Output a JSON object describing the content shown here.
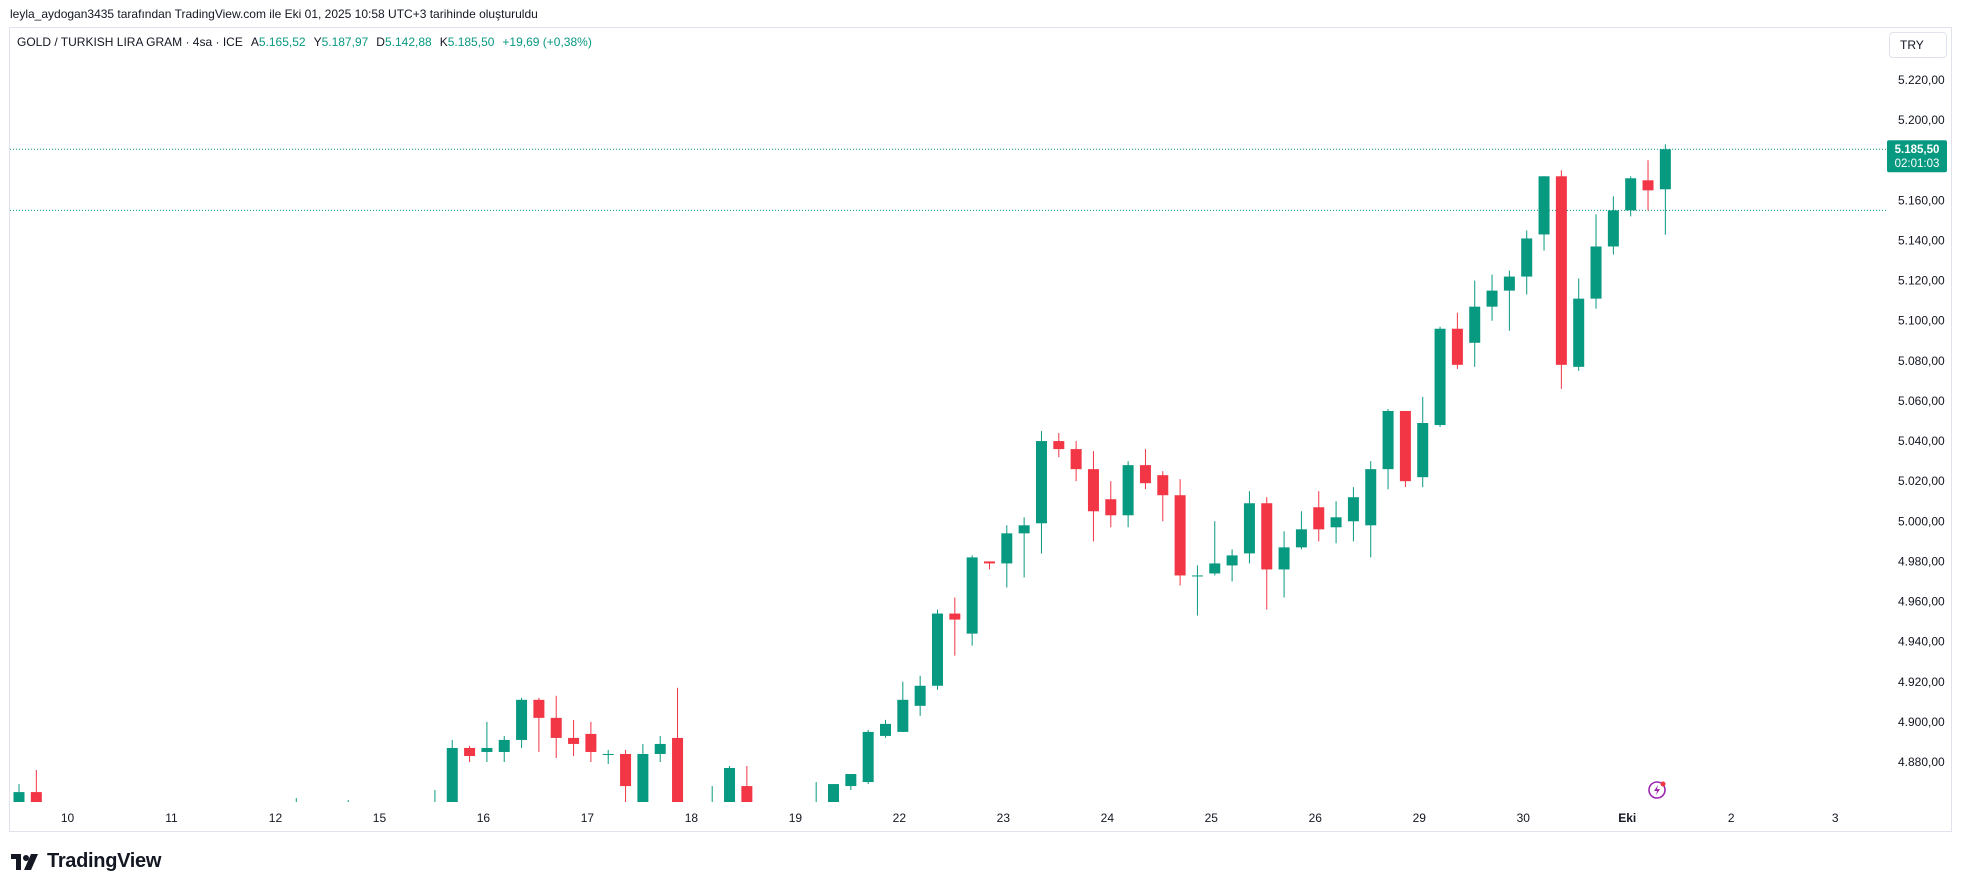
{
  "caption": "leyla_aydogan3435 tarafından TradingView.com ile Eki 01, 2025 10:58 UTC+3 tarihinde oluşturuldu",
  "legend": {
    "symbol": "GOLD / TURKISH LIRA GRAM · 4sa · ICE",
    "open_label": "A",
    "open": "5.165,52",
    "high_label": "Y",
    "high": "5.187,97",
    "low_label": "D",
    "low": "5.142,88",
    "close_label": "K",
    "close": "5.185,50",
    "change": "+19,69 (+0,38%)"
  },
  "currency_button": "TRY",
  "brand": "TradingView",
  "colors": {
    "up": "#089981",
    "down": "#f23645",
    "axis_text": "#131722",
    "badge": "#089981"
  },
  "chart_data": {
    "type": "candlestick",
    "interval": "4sa",
    "y_ticks": [
      4880,
      4900,
      4920,
      4940,
      4960,
      4980,
      5000,
      5020,
      5040,
      5060,
      5080,
      5100,
      5120,
      5140,
      5160,
      5180,
      5200,
      5220
    ],
    "y_tick_labels": [
      "4.880,00",
      "4.900,00",
      "4.920,00",
      "4.940,00",
      "4.960,00",
      "4.980,00",
      "5.000,00",
      "5.020,00",
      "5.040,00",
      "5.060,00",
      "5.080,00",
      "5.100,00",
      "5.120,00",
      "5.140,00",
      "5.160,00",
      "5.180,00",
      "5.200,00",
      "5.220,00"
    ],
    "x_labels": [
      {
        "label": "10",
        "bar": 2.8
      },
      {
        "label": "11",
        "bar": 8.8
      },
      {
        "label": "12",
        "bar": 14.8
      },
      {
        "label": "15",
        "bar": 20.8
      },
      {
        "label": "16",
        "bar": 26.8
      },
      {
        "label": "17",
        "bar": 32.8
      },
      {
        "label": "18",
        "bar": 38.8
      },
      {
        "label": "19",
        "bar": 44.8
      },
      {
        "label": "22",
        "bar": 50.8
      },
      {
        "label": "23",
        "bar": 56.8
      },
      {
        "label": "24",
        "bar": 62.8
      },
      {
        "label": "25",
        "bar": 68.8
      },
      {
        "label": "26",
        "bar": 74.8
      },
      {
        "label": "29",
        "bar": 80.8
      },
      {
        "label": "30",
        "bar": 86.8
      },
      {
        "label": "Eki",
        "bar": 92.8,
        "bold": true
      },
      {
        "label": "2",
        "bar": 98.8
      },
      {
        "label": "3",
        "bar": 104.8
      }
    ],
    "last_price": 5185.5,
    "last_price_label": "5.185,50",
    "countdown_label": "02:01:03",
    "reference_line": 5155,
    "candles": [
      {
        "i": 0,
        "o": 4860,
        "h": 4869,
        "l": 4860,
        "c": 4865
      },
      {
        "i": 1,
        "o": 4865,
        "h": 4876,
        "l": 4860,
        "c": 4860
      },
      {
        "i": 16,
        "o": 4860,
        "h": 4862,
        "l": 4860,
        "c": 4860
      },
      {
        "i": 19,
        "o": 4860,
        "h": 4861,
        "l": 4860,
        "c": 4860
      },
      {
        "i": 24,
        "o": 4860,
        "h": 4866,
        "l": 4860,
        "c": 4860
      },
      {
        "i": 25,
        "o": 4860,
        "h": 4891,
        "l": 4860,
        "c": 4887
      },
      {
        "i": 26,
        "o": 4887,
        "h": 4888,
        "l": 4880,
        "c": 4883
      },
      {
        "i": 27,
        "o": 4885,
        "h": 4900,
        "l": 4880,
        "c": 4887
      },
      {
        "i": 28,
        "o": 4885,
        "h": 4893,
        "l": 4880,
        "c": 4891
      },
      {
        "i": 29,
        "o": 4891,
        "h": 4912,
        "l": 4887,
        "c": 4911
      },
      {
        "i": 30,
        "o": 4911,
        "h": 4912,
        "l": 4885,
        "c": 4902
      },
      {
        "i": 31,
        "o": 4902,
        "h": 4913,
        "l": 4882,
        "c": 4892
      },
      {
        "i": 32,
        "o": 4892,
        "h": 4901,
        "l": 4883,
        "c": 4889
      },
      {
        "i": 33,
        "o": 4894,
        "h": 4900,
        "l": 4880,
        "c": 4885
      },
      {
        "i": 34,
        "o": 4884,
        "h": 4886,
        "l": 4879,
        "c": 4884
      },
      {
        "i": 35,
        "o": 4884,
        "h": 4886,
        "l": 4860,
        "c": 4868
      },
      {
        "i": 36,
        "o": 4860,
        "h": 4889,
        "l": 4860,
        "c": 4884
      },
      {
        "i": 37,
        "o": 4884,
        "h": 4893,
        "l": 4880,
        "c": 4889
      },
      {
        "i": 38,
        "o": 4892,
        "h": 4917,
        "l": 4860,
        "c": 4860
      },
      {
        "i": 40,
        "o": 4860,
        "h": 4868,
        "l": 4860,
        "c": 4860
      },
      {
        "i": 41,
        "o": 4860,
        "h": 4878,
        "l": 4860,
        "c": 4877
      },
      {
        "i": 42,
        "o": 4868,
        "h": 4878,
        "l": 4860,
        "c": 4860
      },
      {
        "i": 46,
        "o": 4860,
        "h": 4870,
        "l": 4860,
        "c": 4860
      },
      {
        "i": 47,
        "o": 4860,
        "h": 4869,
        "l": 4860,
        "c": 4869
      },
      {
        "i": 48,
        "o": 4868,
        "h": 4874,
        "l": 4866,
        "c": 4874
      },
      {
        "i": 49,
        "o": 4870,
        "h": 4896,
        "l": 4869,
        "c": 4895
      },
      {
        "i": 50,
        "o": 4893,
        "h": 4901,
        "l": 4892,
        "c": 4899
      },
      {
        "i": 51,
        "o": 4895,
        "h": 4920,
        "l": 4895,
        "c": 4911
      },
      {
        "i": 52,
        "o": 4908,
        "h": 4923,
        "l": 4903,
        "c": 4918
      },
      {
        "i": 53,
        "o": 4918,
        "h": 4956,
        "l": 4916,
        "c": 4954
      },
      {
        "i": 54,
        "o": 4954,
        "h": 4962,
        "l": 4933,
        "c": 4951
      },
      {
        "i": 55,
        "o": 4944,
        "h": 4983,
        "l": 4938,
        "c": 4982
      },
      {
        "i": 56,
        "o": 4980,
        "h": 4980,
        "l": 4976,
        "c": 4979
      },
      {
        "i": 57,
        "o": 4979,
        "h": 4998,
        "l": 4967,
        "c": 4994
      },
      {
        "i": 58,
        "o": 4994,
        "h": 5002,
        "l": 4972,
        "c": 4998
      },
      {
        "i": 59,
        "o": 4999,
        "h": 5045,
        "l": 4984,
        "c": 5040
      },
      {
        "i": 60,
        "o": 5040,
        "h": 5044,
        "l": 5032,
        "c": 5036
      },
      {
        "i": 61,
        "o": 5036,
        "h": 5040,
        "l": 5020,
        "c": 5026
      },
      {
        "i": 62,
        "o": 5026,
        "h": 5035,
        "l": 4990,
        "c": 5005
      },
      {
        "i": 63,
        "o": 5011,
        "h": 5020,
        "l": 4997,
        "c": 5003
      },
      {
        "i": 64,
        "o": 5003,
        "h": 5030,
        "l": 4997,
        "c": 5028
      },
      {
        "i": 65,
        "o": 5028,
        "h": 5036,
        "l": 5016,
        "c": 5019
      },
      {
        "i": 66,
        "o": 5023,
        "h": 5025,
        "l": 5000,
        "c": 5013
      },
      {
        "i": 67,
        "o": 5013,
        "h": 5021,
        "l": 4968,
        "c": 4973
      },
      {
        "i": 68,
        "o": 4973,
        "h": 4978,
        "l": 4953,
        "c": 4973
      },
      {
        "i": 69,
        "o": 4974,
        "h": 5000,
        "l": 4973,
        "c": 4979
      },
      {
        "i": 70,
        "o": 4978,
        "h": 4986,
        "l": 4970,
        "c": 4983
      },
      {
        "i": 71,
        "o": 4984,
        "h": 5015,
        "l": 4979,
        "c": 5009
      },
      {
        "i": 72,
        "o": 5009,
        "h": 5012,
        "l": 4956,
        "c": 4976
      },
      {
        "i": 73,
        "o": 4976,
        "h": 4995,
        "l": 4962,
        "c": 4987
      },
      {
        "i": 74,
        "o": 4987,
        "h": 5005,
        "l": 4986,
        "c": 4996
      },
      {
        "i": 75,
        "o": 5007,
        "h": 5015,
        "l": 4990,
        "c": 4996
      },
      {
        "i": 76,
        "o": 4997,
        "h": 5010,
        "l": 4989,
        "c": 5002
      },
      {
        "i": 77,
        "o": 5000,
        "h": 5017,
        "l": 4990,
        "c": 5012
      },
      {
        "i": 78,
        "o": 4998,
        "h": 5030,
        "l": 4982,
        "c": 5026
      },
      {
        "i": 79,
        "o": 5026,
        "h": 5056,
        "l": 5016,
        "c": 5055
      },
      {
        "i": 80,
        "o": 5055,
        "h": 5055,
        "l": 5017,
        "c": 5020
      },
      {
        "i": 81,
        "o": 5022,
        "h": 5062,
        "l": 5017,
        "c": 5049
      },
      {
        "i": 82,
        "o": 5048,
        "h": 5097,
        "l": 5047,
        "c": 5096
      },
      {
        "i": 83,
        "o": 5096,
        "h": 5104,
        "l": 5076,
        "c": 5078
      },
      {
        "i": 84,
        "o": 5089,
        "h": 5120,
        "l": 5077,
        "c": 5107
      },
      {
        "i": 85,
        "o": 5107,
        "h": 5123,
        "l": 5100,
        "c": 5115
      },
      {
        "i": 86,
        "o": 5115,
        "h": 5125,
        "l": 5095,
        "c": 5122
      },
      {
        "i": 87,
        "o": 5122,
        "h": 5145,
        "l": 5113,
        "c": 5141
      },
      {
        "i": 88,
        "o": 5143,
        "h": 5172,
        "l": 5135,
        "c": 5172
      },
      {
        "i": 89,
        "o": 5172,
        "h": 5175,
        "l": 5066,
        "c": 5078
      },
      {
        "i": 90,
        "o": 5077,
        "h": 5121,
        "l": 5075,
        "c": 5111
      },
      {
        "i": 91,
        "o": 5111,
        "h": 5153,
        "l": 5106,
        "c": 5137
      },
      {
        "i": 92,
        "o": 5137,
        "h": 5162,
        "l": 5133,
        "c": 5155
      },
      {
        "i": 93,
        "o": 5155,
        "h": 5172,
        "l": 5152,
        "c": 5171
      },
      {
        "i": 94,
        "o": 5170,
        "h": 5180,
        "l": 5155,
        "c": 5165
      },
      {
        "i": 95,
        "o": 5165.52,
        "h": 5187.97,
        "l": 5142.88,
        "c": 5185.5
      }
    ]
  }
}
